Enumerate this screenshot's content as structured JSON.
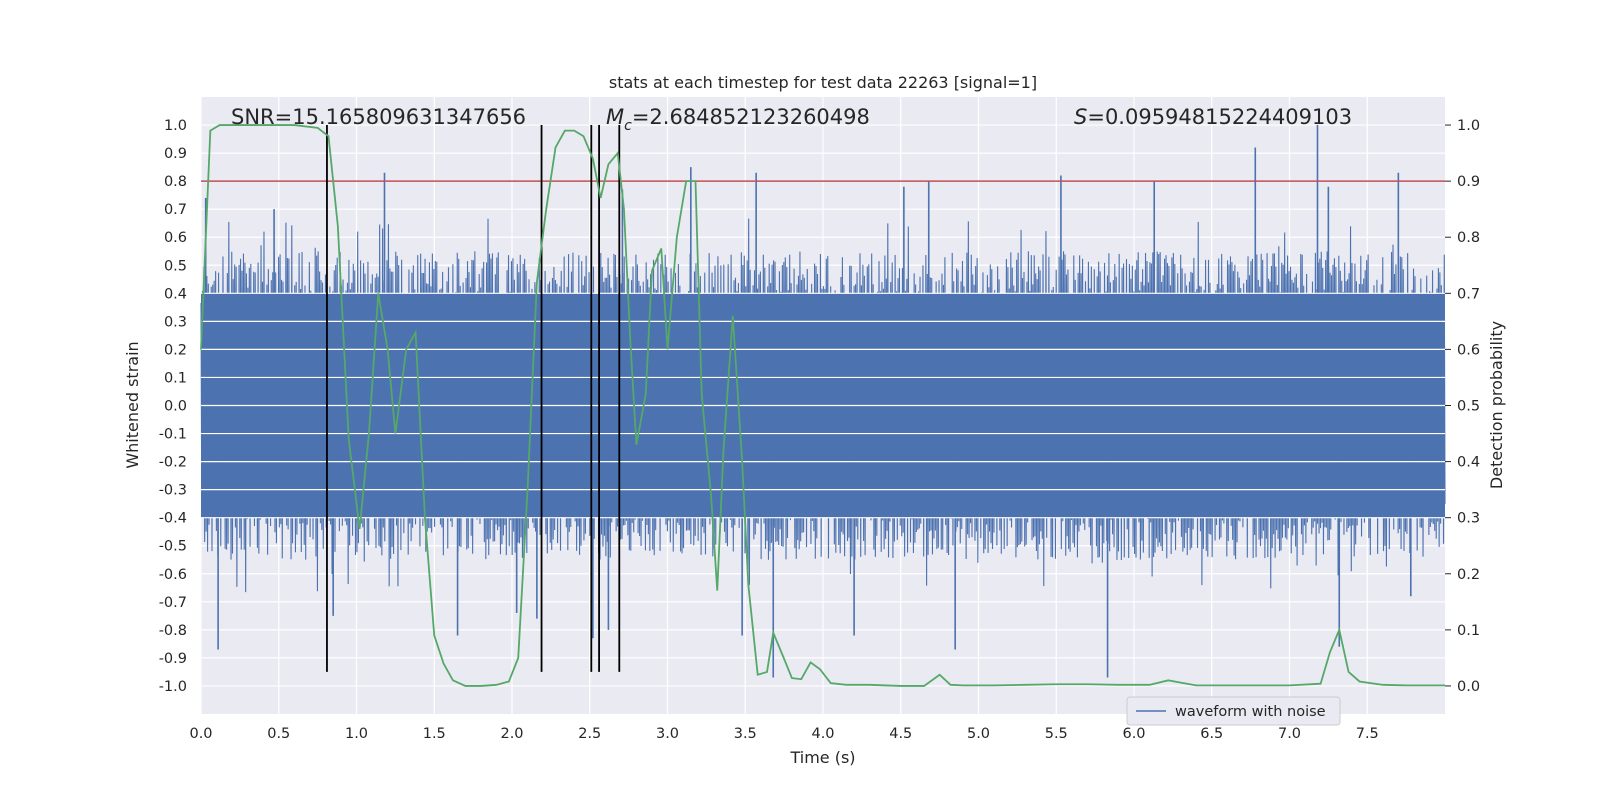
{
  "chart_data": {
    "type": "line",
    "title": "stats at each timestep for test data 22263 [signal=1]",
    "xlabel": "Time (s)",
    "ylabel_left": "Whitened strain",
    "ylabel_right": "Detection probability",
    "xlim": [
      0.0,
      8.0
    ],
    "ylim_left": [
      -1.1,
      1.1
    ],
    "ylim_right": [
      -0.05,
      1.05
    ],
    "grid": true,
    "x_ticks": [
      "0.0",
      "0.5",
      "1.0",
      "1.5",
      "2.0",
      "2.5",
      "3.0",
      "3.5",
      "4.0",
      "4.5",
      "5.0",
      "5.5",
      "6.0",
      "6.5",
      "7.0",
      "7.5"
    ],
    "y_left_ticks": [
      "1.0",
      "0.9",
      "0.8",
      "0.7",
      "0.6",
      "0.5",
      "0.4",
      "0.3",
      "0.2",
      "0.1",
      "0.0",
      "-0.1",
      "-0.2",
      "-0.3",
      "-0.4",
      "-0.5",
      "-0.6",
      "-0.7",
      "-0.8",
      "-0.9",
      "-1.0"
    ],
    "y_right_ticks": [
      "0.0",
      "0.1",
      "0.2",
      "0.3",
      "0.4",
      "0.5",
      "0.6",
      "0.7",
      "0.8",
      "0.9",
      "1.0"
    ],
    "annotations": {
      "snr": "SNR=15.165809631347656",
      "mc_symbol": "M",
      "mc_sub": "c",
      "mc_value": "=2.684852123260498",
      "s_symbol": "S",
      "s_value": "=0.09594815224409103"
    },
    "threshold": {
      "axis": "right",
      "value": 0.9,
      "color": "#c44e52"
    },
    "vertical_lines": {
      "x": [
        0.81,
        2.19,
        2.51,
        2.56,
        2.69
      ],
      "y_range": [
        -0.95,
        1.0
      ],
      "color": "#000000"
    },
    "waveform": {
      "name": "waveform with noise",
      "color": "#4c72b0",
      "core_band": [
        -0.4,
        0.4
      ],
      "typical_peak": 0.55,
      "peaks": [
        {
          "x": 0.03,
          "y": 0.74
        },
        {
          "x": 0.11,
          "y": -0.87
        },
        {
          "x": 0.47,
          "y": 0.7
        },
        {
          "x": 0.85,
          "y": -0.75
        },
        {
          "x": 1.18,
          "y": 0.83
        },
        {
          "x": 1.65,
          "y": -0.82
        },
        {
          "x": 2.03,
          "y": -0.74
        },
        {
          "x": 2.16,
          "y": -0.76
        },
        {
          "x": 2.52,
          "y": -0.83
        },
        {
          "x": 2.62,
          "y": -0.8
        },
        {
          "x": 2.71,
          "y": 0.77
        },
        {
          "x": 3.15,
          "y": 0.85
        },
        {
          "x": 3.48,
          "y": -0.82
        },
        {
          "x": 3.57,
          "y": 0.83
        },
        {
          "x": 3.68,
          "y": -0.97
        },
        {
          "x": 4.2,
          "y": -0.82
        },
        {
          "x": 4.52,
          "y": 0.78
        },
        {
          "x": 4.68,
          "y": 0.8
        },
        {
          "x": 4.85,
          "y": -0.87
        },
        {
          "x": 5.53,
          "y": 0.82
        },
        {
          "x": 5.83,
          "y": -0.97
        },
        {
          "x": 6.13,
          "y": 0.8
        },
        {
          "x": 6.78,
          "y": 0.92
        },
        {
          "x": 7.18,
          "y": 1.0
        },
        {
          "x": 7.25,
          "y": 0.78
        },
        {
          "x": 7.32,
          "y": -0.86
        },
        {
          "x": 7.7,
          "y": 0.83
        },
        {
          "x": 7.78,
          "y": -0.68
        }
      ]
    },
    "probability": {
      "color": "#55a868",
      "points": [
        [
          0.0,
          0.6
        ],
        [
          0.06,
          0.99
        ],
        [
          0.12,
          1.0
        ],
        [
          0.3,
          1.0
        ],
        [
          0.5,
          1.0
        ],
        [
          0.6,
          1.0
        ],
        [
          0.75,
          0.995
        ],
        [
          0.82,
          0.98
        ],
        [
          0.88,
          0.82
        ],
        [
          0.95,
          0.44
        ],
        [
          1.02,
          0.28
        ],
        [
          1.08,
          0.45
        ],
        [
          1.14,
          0.7
        ],
        [
          1.2,
          0.6
        ],
        [
          1.25,
          0.45
        ],
        [
          1.32,
          0.6
        ],
        [
          1.38,
          0.63
        ],
        [
          1.44,
          0.3
        ],
        [
          1.5,
          0.09
        ],
        [
          1.56,
          0.04
        ],
        [
          1.62,
          0.01
        ],
        [
          1.7,
          0.0
        ],
        [
          1.8,
          0.0
        ],
        [
          1.9,
          0.002
        ],
        [
          1.98,
          0.008
        ],
        [
          2.04,
          0.05
        ],
        [
          2.1,
          0.35
        ],
        [
          2.16,
          0.72
        ],
        [
          2.22,
          0.85
        ],
        [
          2.28,
          0.96
        ],
        [
          2.34,
          0.99
        ],
        [
          2.4,
          0.99
        ],
        [
          2.46,
          0.98
        ],
        [
          2.52,
          0.94
        ],
        [
          2.57,
          0.87
        ],
        [
          2.62,
          0.93
        ],
        [
          2.68,
          0.95
        ],
        [
          2.72,
          0.85
        ],
        [
          2.76,
          0.62
        ],
        [
          2.8,
          0.43
        ],
        [
          2.86,
          0.52
        ],
        [
          2.9,
          0.74
        ],
        [
          2.96,
          0.78
        ],
        [
          3.0,
          0.6
        ],
        [
          3.06,
          0.8
        ],
        [
          3.12,
          0.9
        ],
        [
          3.18,
          0.9
        ],
        [
          3.22,
          0.52
        ],
        [
          3.28,
          0.34
        ],
        [
          3.32,
          0.17
        ],
        [
          3.36,
          0.42
        ],
        [
          3.42,
          0.66
        ],
        [
          3.48,
          0.4
        ],
        [
          3.52,
          0.18
        ],
        [
          3.58,
          0.02
        ],
        [
          3.64,
          0.025
        ],
        [
          3.68,
          0.095
        ],
        [
          3.74,
          0.055
        ],
        [
          3.8,
          0.014
        ],
        [
          3.86,
          0.012
        ],
        [
          3.92,
          0.042
        ],
        [
          3.98,
          0.03
        ],
        [
          4.05,
          0.005
        ],
        [
          4.15,
          0.002
        ],
        [
          4.3,
          0.002
        ],
        [
          4.5,
          0.0
        ],
        [
          4.65,
          0.0
        ],
        [
          4.75,
          0.02
        ],
        [
          4.82,
          0.002
        ],
        [
          4.9,
          0.001
        ],
        [
          5.1,
          0.001
        ],
        [
          5.3,
          0.002
        ],
        [
          5.5,
          0.003
        ],
        [
          5.7,
          0.003
        ],
        [
          5.9,
          0.002
        ],
        [
          6.1,
          0.002
        ],
        [
          6.22,
          0.01
        ],
        [
          6.3,
          0.006
        ],
        [
          6.4,
          0.001
        ],
        [
          6.7,
          0.001
        ],
        [
          7.0,
          0.001
        ],
        [
          7.2,
          0.004
        ],
        [
          7.26,
          0.06
        ],
        [
          7.32,
          0.1
        ],
        [
          7.38,
          0.025
        ],
        [
          7.45,
          0.008
        ],
        [
          7.6,
          0.002
        ],
        [
          7.75,
          0.001
        ],
        [
          8.0,
          0.001
        ]
      ]
    },
    "legend": {
      "position": "lower-right",
      "entries": [
        "waveform with noise"
      ]
    }
  }
}
